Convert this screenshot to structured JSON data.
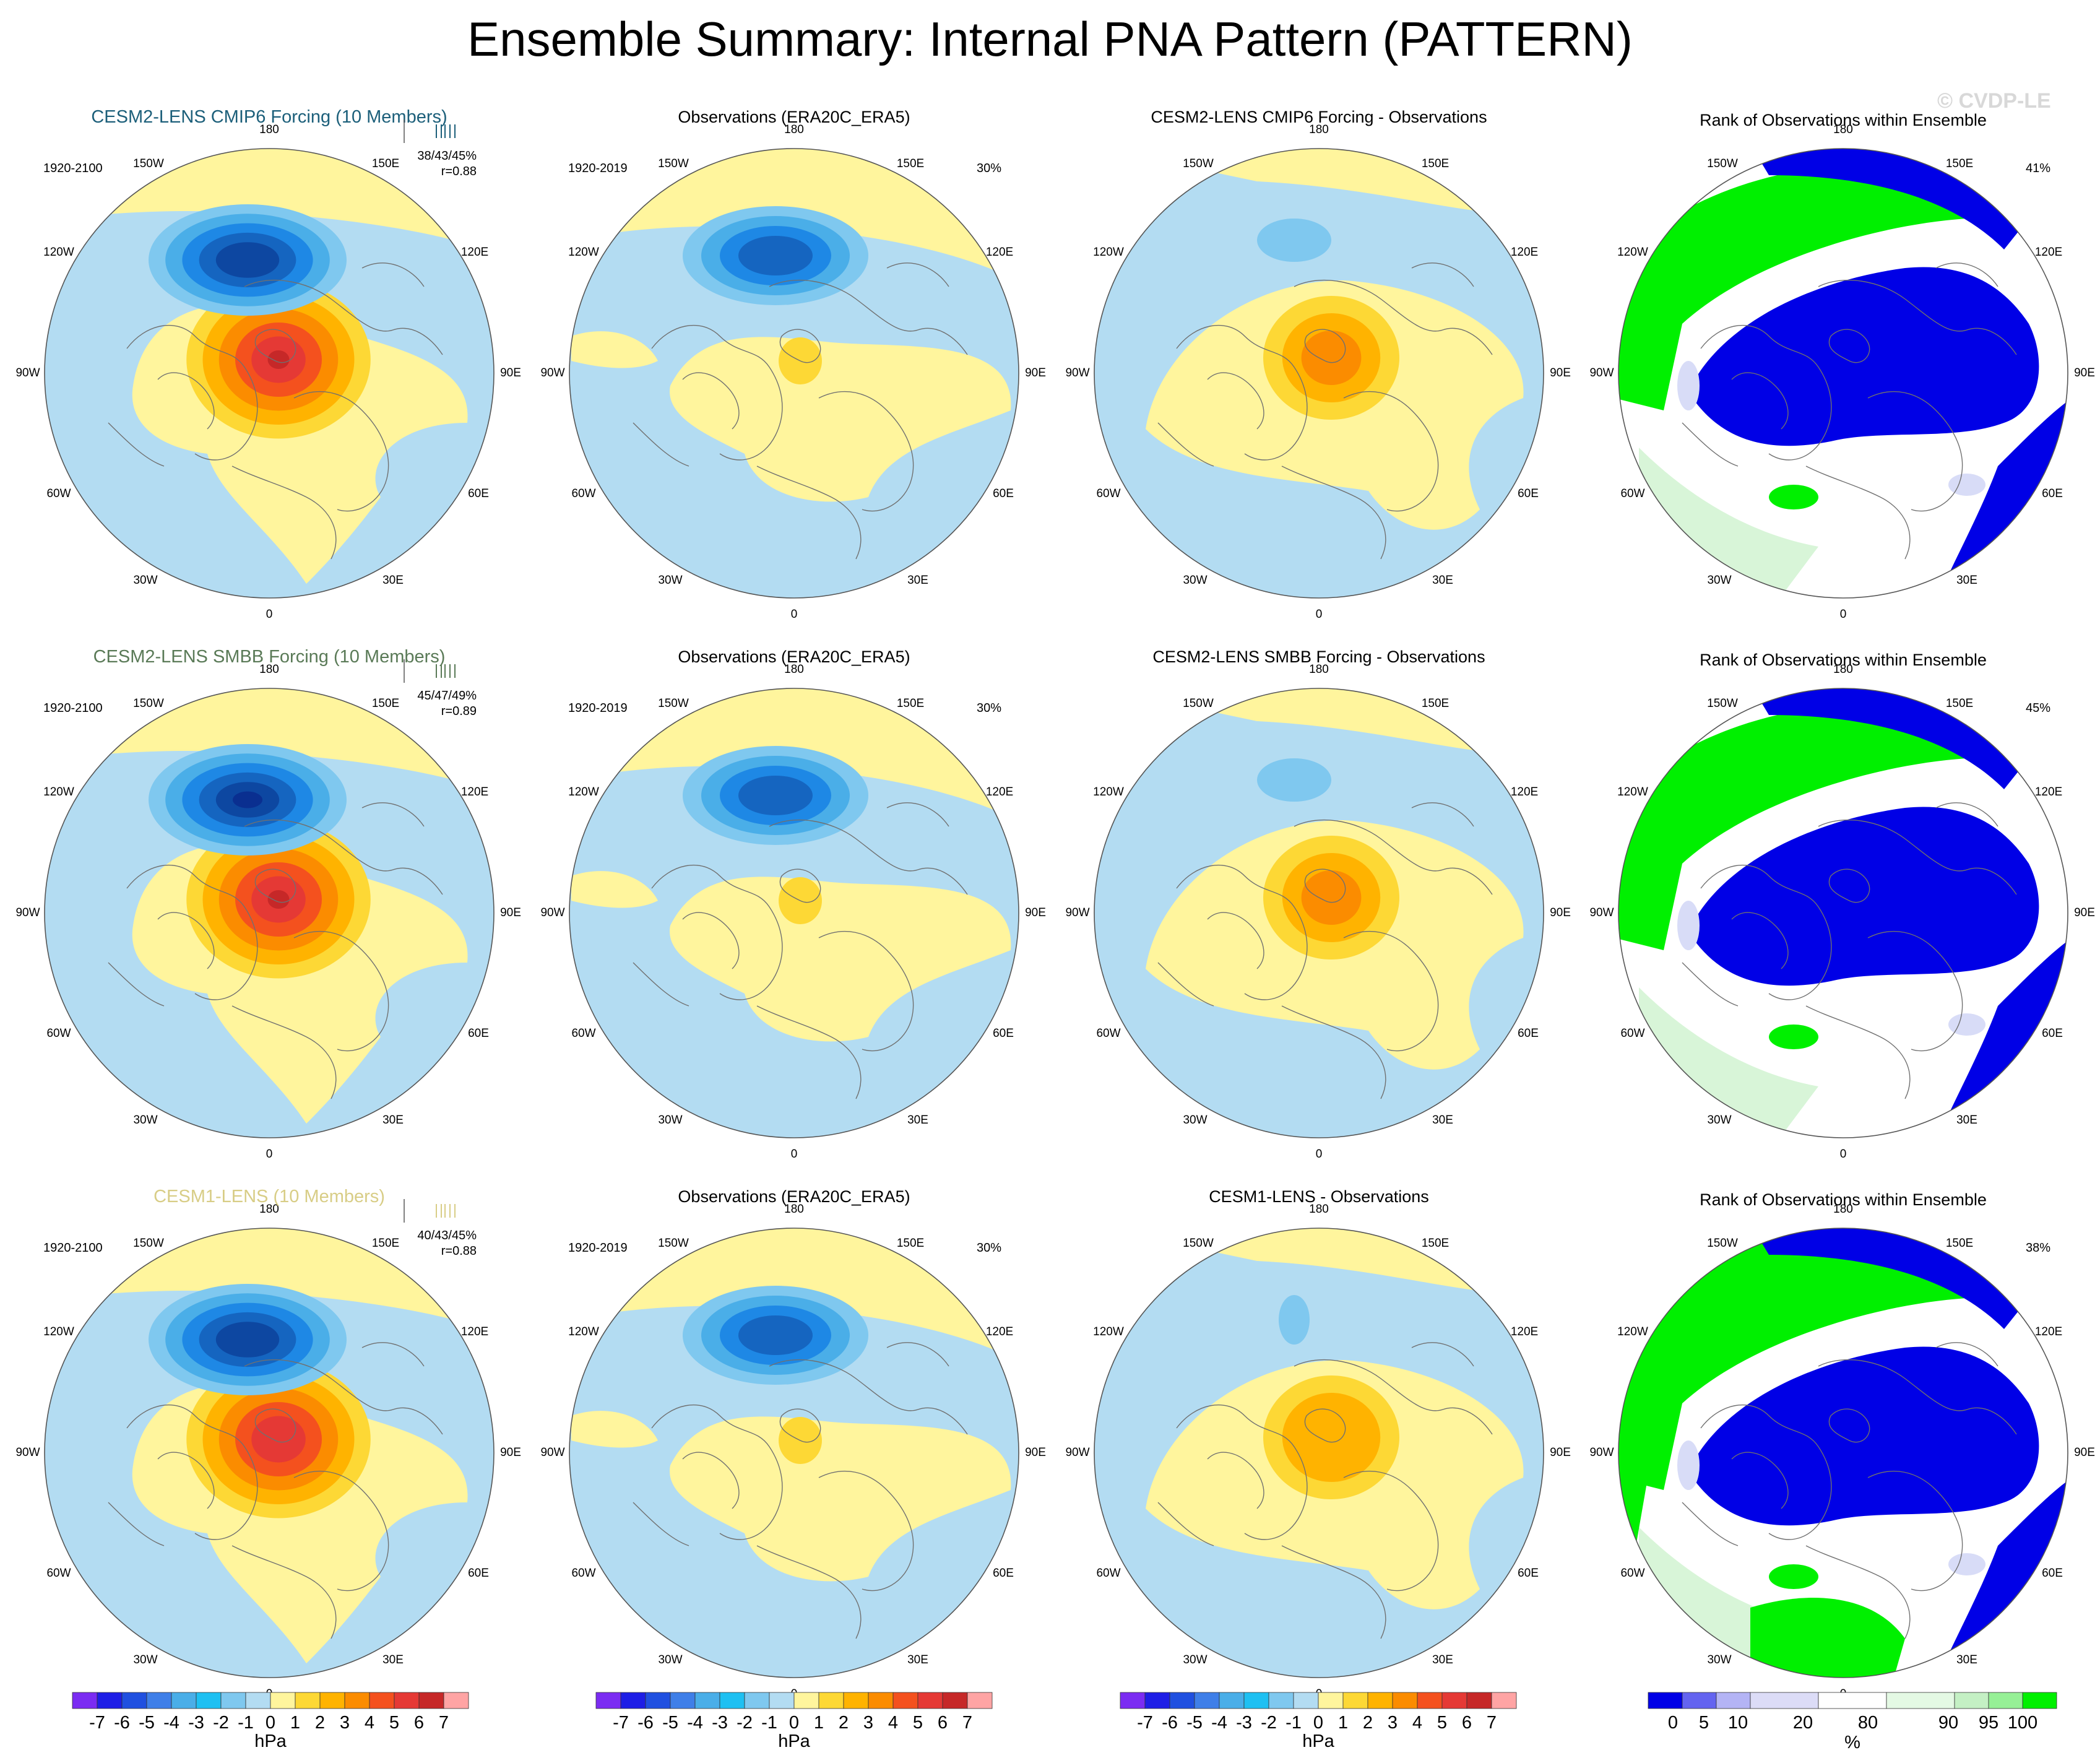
{
  "title": "Ensemble Summary: Internal PNA Pattern (PATTERN)",
  "watermark": "© CVDP-LE",
  "colors": {
    "ocean_neg": "#b3dcf2",
    "land_pos": "#fff59d",
    "neg_levels": [
      "#b3dcf2",
      "#7fc8ef",
      "#4aaee8",
      "#1e88e5",
      "#1565c0",
      "#0d47a1",
      "#0a2f90",
      "#7b2cf2"
    ],
    "pos_levels": [
      "#fff59d",
      "#fdd835",
      "#ffb300",
      "#fb8c00",
      "#f4511e",
      "#e53935",
      "#c62828",
      "#ffa4a4"
    ],
    "rank_blue": "#0000e6",
    "rank_green": "#00f000",
    "rank_white": "#ffffff",
    "rank_lightgreen": "#d8f5d8",
    "rank_lavender": "#d8dcf7",
    "model_title_1": "#1c5f7a",
    "model_title_2": "#5a7a57",
    "model_title_3": "#d8cd86"
  },
  "rows": [
    {
      "model_title": "CESM2-LENS CMIP6 Forcing (10 Members)",
      "model_period": "1920-2100",
      "model_stats": "38/43/45%",
      "model_r": "r=0.88",
      "obs_title": "Observations (ERA20C_ERA5)",
      "obs_period": "1920-2019",
      "obs_pct": "30%",
      "diff_title": "CESM2-LENS CMIP6 Forcing - Observations",
      "rank_title": "Rank of Observations within Ensemble",
      "rank_pct": "41%"
    },
    {
      "model_title": "CESM2-LENS SMBB Forcing (10 Members)",
      "model_period": "1920-2100",
      "model_stats": "45/47/49%",
      "model_r": "r=0.89",
      "obs_title": "Observations (ERA20C_ERA5)",
      "obs_period": "1920-2019",
      "obs_pct": "30%",
      "diff_title": "CESM2-LENS SMBB Forcing - Observations",
      "rank_title": "Rank of Observations within Ensemble",
      "rank_pct": "45%"
    },
    {
      "model_title": "CESM1-LENS (10 Members)",
      "model_period": "1920-2100",
      "model_stats": "40/43/45%",
      "model_r": "r=0.88",
      "obs_title": "Observations (ERA20C_ERA5)",
      "obs_period": "1920-2019",
      "obs_pct": "30%",
      "diff_title": "CESM1-LENS - Observations",
      "rank_title": "Rank of Observations within Ensemble",
      "rank_pct": "38%"
    }
  ],
  "map_labels": [
    "180",
    "150E",
    "120E",
    "90E",
    "60E",
    "30E",
    "0",
    "30W",
    "60W",
    "90W",
    "120W",
    "150W"
  ],
  "colorbar_hpa": {
    "ticks": [
      "-7",
      "-6",
      "-5",
      "-4",
      "-3",
      "-2",
      "-1",
      "0",
      "1",
      "2",
      "3",
      "4",
      "5",
      "6",
      "7"
    ],
    "unit": "hPa"
  },
  "colorbar_rank": {
    "ticks": [
      "0",
      "5",
      "10",
      "20",
      "80",
      "90",
      "95",
      "100"
    ],
    "unit": "%"
  },
  "chart_data": {
    "type": "heatmap",
    "title": "Ensemble Summary: Internal PNA Pattern (PATTERN)",
    "projection": "north polar stereographic",
    "field": "sea level pressure PNA pattern",
    "units": "hPa",
    "contour_levels": [
      -7,
      -6,
      -5,
      -4,
      -3,
      -2,
      -1,
      0,
      1,
      2,
      3,
      4,
      5,
      6,
      7
    ],
    "panels": [
      {
        "row": 1,
        "col": 1,
        "title": "CESM2-LENS CMIP6 Forcing (10 Members)",
        "period": "1920-2100",
        "pct_var": [
          38,
          43,
          45
        ],
        "r": 0.88,
        "pacific_min": -4,
        "canada_max": 6
      },
      {
        "row": 1,
        "col": 2,
        "title": "Observations (ERA20C_ERA5)",
        "period": "1920-2019",
        "pct_var": 30,
        "pacific_min": -3,
        "canada_max": 1
      },
      {
        "row": 1,
        "col": 3,
        "title": "CESM2-LENS CMIP6 Forcing - Observations",
        "pacific_min": -1,
        "canada_max": 4
      },
      {
        "row": 1,
        "col": 4,
        "title": "Rank of Observations within Ensemble",
        "pct": 41
      },
      {
        "row": 2,
        "col": 1,
        "title": "CESM2-LENS SMBB Forcing (10 Members)",
        "period": "1920-2100",
        "pct_var": [
          45,
          47,
          49
        ],
        "r": 0.89,
        "pacific_min": -5,
        "canada_max": 6
      },
      {
        "row": 2,
        "col": 2,
        "title": "Observations (ERA20C_ERA5)",
        "period": "1920-2019",
        "pct_var": 30,
        "pacific_min": -3,
        "canada_max": 1
      },
      {
        "row": 2,
        "col": 3,
        "title": "CESM2-LENS SMBB Forcing - Observations",
        "pacific_min": -1,
        "canada_max": 4
      },
      {
        "row": 2,
        "col": 4,
        "title": "Rank of Observations within Ensemble",
        "pct": 45
      },
      {
        "row": 3,
        "col": 1,
        "title": "CESM1-LENS (10 Members)",
        "period": "1920-2100",
        "pct_var": [
          40,
          43,
          45
        ],
        "r": 0.88,
        "pacific_min": -4,
        "canada_max": 5
      },
      {
        "row": 3,
        "col": 2,
        "title": "Observations (ERA20C_ERA5)",
        "period": "1920-2019",
        "pct_var": 30,
        "pacific_min": -3,
        "canada_max": 1
      },
      {
        "row": 3,
        "col": 3,
        "title": "CESM1-LENS - Observations",
        "pacific_min": -1,
        "canada_max": 3
      },
      {
        "row": 3,
        "col": 4,
        "title": "Rank of Observations within Ensemble",
        "pct": 38
      }
    ]
  }
}
